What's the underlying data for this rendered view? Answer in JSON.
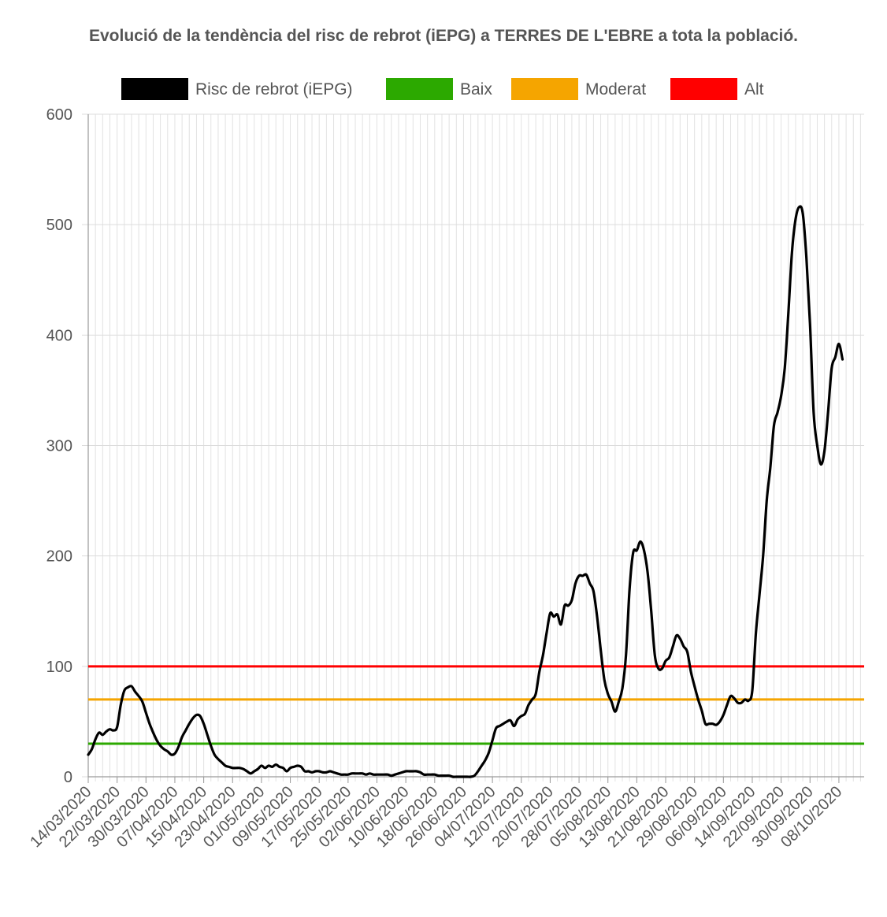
{
  "chart_data": {
    "type": "line",
    "title": "Evolució de la tendència del risc de rebrot (iEPG) a TERRES DE L'EBRE a tota la població.",
    "xlabel": "",
    "ylabel": "",
    "x_start": "14/03/2020",
    "x_end": "15/10/2020",
    "x_tick_labels": [
      "14/03/2020",
      "22/03/2020",
      "30/03/2020",
      "07/04/2020",
      "15/04/2020",
      "23/04/2020",
      "01/05/2020",
      "09/05/2020",
      "17/05/2020",
      "25/05/2020",
      "02/06/2020",
      "10/06/2020",
      "18/06/2020",
      "26/06/2020",
      "04/07/2020",
      "12/07/2020",
      "20/07/2020",
      "28/07/2020",
      "05/08/2020",
      "13/08/2020",
      "21/08/2020",
      "29/08/2020",
      "06/09/2020",
      "14/09/2020",
      "22/09/2020",
      "30/09/2020",
      "08/10/2020"
    ],
    "ylim": [
      0,
      600
    ],
    "y_ticks": [
      0,
      100,
      200,
      300,
      400,
      500,
      600
    ],
    "grid": true,
    "legend_position": "top",
    "series": [
      {
        "name": "Risc de rebrot (iEPG)",
        "color": "#000000",
        "points": [
          [
            "14/03/2020",
            20
          ],
          [
            "15/03/2020",
            25
          ],
          [
            "16/03/2020",
            34
          ],
          [
            "17/03/2020",
            40
          ],
          [
            "18/03/2020",
            38
          ],
          [
            "19/03/2020",
            41
          ],
          [
            "20/03/2020",
            43
          ],
          [
            "21/03/2020",
            42
          ],
          [
            "22/03/2020",
            45
          ],
          [
            "23/03/2020",
            65
          ],
          [
            "24/03/2020",
            78
          ],
          [
            "25/03/2020",
            81
          ],
          [
            "26/03/2020",
            82
          ],
          [
            "27/03/2020",
            77
          ],
          [
            "28/03/2020",
            73
          ],
          [
            "29/03/2020",
            68
          ],
          [
            "30/03/2020",
            58
          ],
          [
            "31/03/2020",
            48
          ],
          [
            "01/04/2020",
            40
          ],
          [
            "02/04/2020",
            33
          ],
          [
            "03/04/2020",
            28
          ],
          [
            "04/04/2020",
            25
          ],
          [
            "05/04/2020",
            23
          ],
          [
            "06/04/2020",
            20
          ],
          [
            "07/04/2020",
            21
          ],
          [
            "08/04/2020",
            27
          ],
          [
            "09/04/2020",
            36
          ],
          [
            "10/04/2020",
            42
          ],
          [
            "11/04/2020",
            48
          ],
          [
            "12/04/2020",
            53
          ],
          [
            "13/04/2020",
            56
          ],
          [
            "14/04/2020",
            55
          ],
          [
            "15/04/2020",
            48
          ],
          [
            "16/04/2020",
            38
          ],
          [
            "17/04/2020",
            28
          ],
          [
            "18/04/2020",
            20
          ],
          [
            "19/04/2020",
            16
          ],
          [
            "20/04/2020",
            13
          ],
          [
            "21/04/2020",
            10
          ],
          [
            "22/04/2020",
            9
          ],
          [
            "23/04/2020",
            8
          ],
          [
            "24/04/2020",
            8
          ],
          [
            "25/04/2020",
            8
          ],
          [
            "26/04/2020",
            7
          ],
          [
            "27/04/2020",
            5
          ],
          [
            "28/04/2020",
            3
          ],
          [
            "29/04/2020",
            5
          ],
          [
            "30/04/2020",
            7
          ],
          [
            "01/05/2020",
            10
          ],
          [
            "02/05/2020",
            8
          ],
          [
            "03/05/2020",
            10
          ],
          [
            "04/05/2020",
            9
          ],
          [
            "05/05/2020",
            11
          ],
          [
            "06/05/2020",
            9
          ],
          [
            "07/05/2020",
            8
          ],
          [
            "08/05/2020",
            5
          ],
          [
            "09/05/2020",
            8
          ],
          [
            "10/05/2020",
            9
          ],
          [
            "11/05/2020",
            10
          ],
          [
            "12/05/2020",
            9
          ],
          [
            "13/05/2020",
            5
          ],
          [
            "14/05/2020",
            5
          ],
          [
            "15/05/2020",
            4
          ],
          [
            "16/05/2020",
            5
          ],
          [
            "17/05/2020",
            5
          ],
          [
            "18/05/2020",
            4
          ],
          [
            "19/05/2020",
            4
          ],
          [
            "20/05/2020",
            5
          ],
          [
            "21/05/2020",
            4
          ],
          [
            "22/05/2020",
            3
          ],
          [
            "23/05/2020",
            2
          ],
          [
            "24/05/2020",
            2
          ],
          [
            "25/05/2020",
            2
          ],
          [
            "26/05/2020",
            3
          ],
          [
            "27/05/2020",
            3
          ],
          [
            "28/05/2020",
            3
          ],
          [
            "29/05/2020",
            3
          ],
          [
            "30/05/2020",
            2
          ],
          [
            "31/05/2020",
            3
          ],
          [
            "01/06/2020",
            2
          ],
          [
            "02/06/2020",
            2
          ],
          [
            "03/06/2020",
            2
          ],
          [
            "04/06/2020",
            2
          ],
          [
            "05/06/2020",
            2
          ],
          [
            "06/06/2020",
            1
          ],
          [
            "07/06/2020",
            2
          ],
          [
            "08/06/2020",
            3
          ],
          [
            "09/06/2020",
            4
          ],
          [
            "10/06/2020",
            5
          ],
          [
            "11/06/2020",
            5
          ],
          [
            "12/06/2020",
            5
          ],
          [
            "13/06/2020",
            5
          ],
          [
            "14/06/2020",
            4
          ],
          [
            "15/06/2020",
            2
          ],
          [
            "16/06/2020",
            2
          ],
          [
            "17/06/2020",
            2
          ],
          [
            "18/06/2020",
            2
          ],
          [
            "19/06/2020",
            1
          ],
          [
            "20/06/2020",
            1
          ],
          [
            "21/06/2020",
            1
          ],
          [
            "22/06/2020",
            1
          ],
          [
            "23/06/2020",
            0
          ],
          [
            "24/06/2020",
            0
          ],
          [
            "25/06/2020",
            0
          ],
          [
            "26/06/2020",
            0
          ],
          [
            "27/06/2020",
            0
          ],
          [
            "28/06/2020",
            0
          ],
          [
            "29/06/2020",
            1
          ],
          [
            "30/06/2020",
            5
          ],
          [
            "01/07/2020",
            10
          ],
          [
            "02/07/2020",
            15
          ],
          [
            "03/07/2020",
            22
          ],
          [
            "04/07/2020",
            33
          ],
          [
            "05/07/2020",
            44
          ],
          [
            "06/07/2020",
            46
          ],
          [
            "07/07/2020",
            48
          ],
          [
            "08/07/2020",
            50
          ],
          [
            "09/07/2020",
            51
          ],
          [
            "10/07/2020",
            46
          ],
          [
            "11/07/2020",
            52
          ],
          [
            "12/07/2020",
            55
          ],
          [
            "13/07/2020",
            57
          ],
          [
            "14/07/2020",
            65
          ],
          [
            "15/07/2020",
            70
          ],
          [
            "16/07/2020",
            75
          ],
          [
            "17/07/2020",
            95
          ],
          [
            "18/07/2020",
            110
          ],
          [
            "19/07/2020",
            130
          ],
          [
            "20/07/2020",
            148
          ],
          [
            "21/07/2020",
            145
          ],
          [
            "22/07/2020",
            147
          ],
          [
            "23/07/2020",
            138
          ],
          [
            "24/07/2020",
            155
          ],
          [
            "25/07/2020",
            155
          ],
          [
            "26/07/2020",
            160
          ],
          [
            "27/07/2020",
            175
          ],
          [
            "28/07/2020",
            182
          ],
          [
            "29/07/2020",
            182
          ],
          [
            "30/07/2020",
            183
          ],
          [
            "31/07/2020",
            175
          ],
          [
            "01/08/2020",
            168
          ],
          [
            "02/08/2020",
            145
          ],
          [
            "03/08/2020",
            115
          ],
          [
            "04/08/2020",
            88
          ],
          [
            "05/08/2020",
            75
          ],
          [
            "06/08/2020",
            68
          ],
          [
            "07/08/2020",
            59
          ],
          [
            "08/08/2020",
            68
          ],
          [
            "09/08/2020",
            80
          ],
          [
            "10/08/2020",
            110
          ],
          [
            "11/08/2020",
            170
          ],
          [
            "12/08/2020",
            203
          ],
          [
            "13/08/2020",
            205
          ],
          [
            "14/08/2020",
            213
          ],
          [
            "15/08/2020",
            205
          ],
          [
            "16/08/2020",
            185
          ],
          [
            "17/08/2020",
            150
          ],
          [
            "18/08/2020",
            110
          ],
          [
            "19/08/2020",
            98
          ],
          [
            "20/08/2020",
            98
          ],
          [
            "21/08/2020",
            105
          ],
          [
            "22/08/2020",
            108
          ],
          [
            "23/08/2020",
            118
          ],
          [
            "24/08/2020",
            128
          ],
          [
            "25/08/2020",
            125
          ],
          [
            "26/08/2020",
            118
          ],
          [
            "27/08/2020",
            113
          ],
          [
            "28/08/2020",
            95
          ],
          [
            "29/08/2020",
            82
          ],
          [
            "30/08/2020",
            70
          ],
          [
            "31/08/2020",
            60
          ],
          [
            "01/09/2020",
            48
          ],
          [
            "02/09/2020",
            48
          ],
          [
            "03/09/2020",
            48
          ],
          [
            "04/09/2020",
            47
          ],
          [
            "05/09/2020",
            50
          ],
          [
            "06/09/2020",
            56
          ],
          [
            "07/09/2020",
            65
          ],
          [
            "08/09/2020",
            73
          ],
          [
            "09/09/2020",
            71
          ],
          [
            "10/09/2020",
            67
          ],
          [
            "11/09/2020",
            67
          ],
          [
            "12/09/2020",
            70
          ],
          [
            "13/09/2020",
            69
          ],
          [
            "14/09/2020",
            78
          ],
          [
            "15/09/2020",
            130
          ],
          [
            "16/09/2020",
            165
          ],
          [
            "17/09/2020",
            200
          ],
          [
            "18/09/2020",
            250
          ],
          [
            "19/09/2020",
            280
          ],
          [
            "20/09/2020",
            318
          ],
          [
            "21/09/2020",
            330
          ],
          [
            "22/09/2020",
            345
          ],
          [
            "23/09/2020",
            370
          ],
          [
            "24/09/2020",
            420
          ],
          [
            "25/09/2020",
            475
          ],
          [
            "26/09/2020",
            505
          ],
          [
            "27/09/2020",
            516
          ],
          [
            "28/09/2020",
            510
          ],
          [
            "29/09/2020",
            470
          ],
          [
            "30/09/2020",
            410
          ],
          [
            "01/10/2020",
            330
          ],
          [
            "02/10/2020",
            300
          ],
          [
            "03/10/2020",
            283
          ],
          [
            "04/10/2020",
            295
          ],
          [
            "05/10/2020",
            330
          ],
          [
            "06/10/2020",
            370
          ],
          [
            "07/10/2020",
            380
          ],
          [
            "08/10/2020",
            392
          ],
          [
            "09/10/2020",
            378
          ]
        ]
      },
      {
        "name": "Baix",
        "color": "#2ca900",
        "constant": 30
      },
      {
        "name": "Moderat",
        "color": "#f5a500",
        "constant": 70
      },
      {
        "name": "Alt",
        "color": "#ff0000",
        "constant": 100
      }
    ]
  }
}
